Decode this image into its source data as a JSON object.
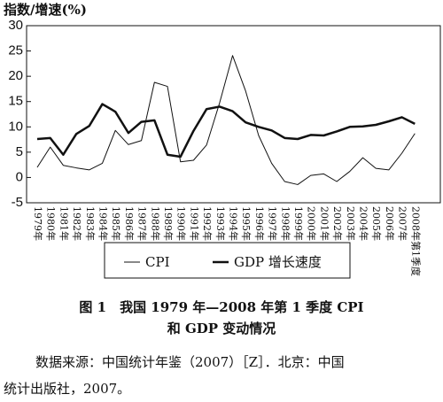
{
  "chart_data": {
    "type": "line",
    "y_label": "指数/增速(%)",
    "categories": [
      "1979年",
      "1980年",
      "1981年",
      "1982年",
      "1983年",
      "1984年",
      "1985年",
      "1986年",
      "1987年",
      "1988年",
      "1989年",
      "1990年",
      "1991年",
      "1992年",
      "1993年",
      "1994年",
      "1995年",
      "1996年",
      "1997年",
      "1998年",
      "1999年",
      "2000年",
      "2001年",
      "2002年",
      "2003年",
      "2004年",
      "2005年",
      "2006年",
      "2007年",
      "2008年第1季度"
    ],
    "series": [
      {
        "name": "CPI",
        "color": "#111111",
        "width": 1,
        "values": [
          2.0,
          6.0,
          2.4,
          1.9,
          1.5,
          2.8,
          9.3,
          6.5,
          7.3,
          18.8,
          18.0,
          3.1,
          3.4,
          6.4,
          14.7,
          24.1,
          17.1,
          8.3,
          2.8,
          -0.8,
          -1.4,
          0.4,
          0.7,
          -0.8,
          1.2,
          3.9,
          1.8,
          1.5,
          4.8,
          8.7
        ]
      },
      {
        "name": "GDP 增长速度",
        "color": "#111111",
        "width": 2.5,
        "values": [
          7.6,
          7.8,
          4.5,
          8.6,
          10.2,
          14.5,
          13.0,
          8.8,
          11.0,
          11.3,
          4.5,
          4.1,
          9.2,
          13.5,
          14.0,
          13.1,
          10.9,
          10.0,
          9.3,
          7.8,
          7.6,
          8.4,
          8.3,
          9.1,
          10.0,
          10.1,
          10.4,
          11.1,
          11.9,
          10.6
        ]
      }
    ],
    "ylim": [
      -5,
      30
    ],
    "yticks": [
      -5,
      0,
      5,
      10,
      15,
      20,
      25,
      30
    ]
  },
  "caption": [
    "图 1　我国 1979 年—2008 年第 1 季度 CPI",
    "和 GDP 变动情况"
  ],
  "source": [
    "数据来源：中国统计年鉴（2007）［Z］．北京：中国",
    "统计出版社，2007。"
  ]
}
